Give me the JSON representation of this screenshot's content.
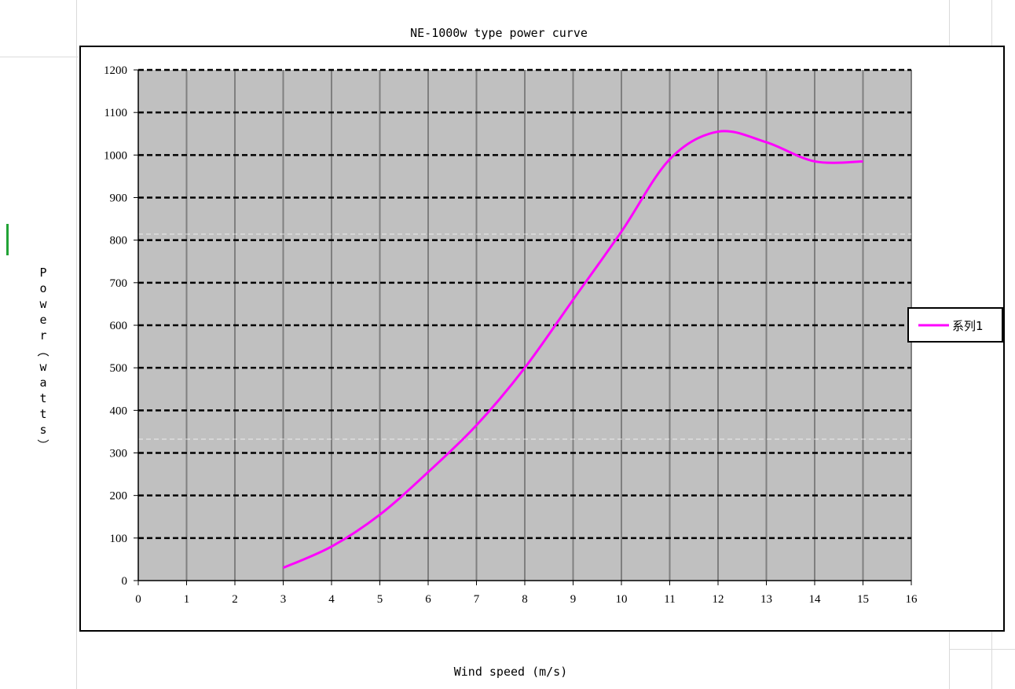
{
  "chart_data": {
    "type": "line",
    "title": "NE-1000w type power curve",
    "xlabel": "Wind speed (m/s)",
    "ylabel": "Power(watts)",
    "xlim": [
      0,
      16
    ],
    "ylim": [
      0,
      1200
    ],
    "x_ticks": [
      "0",
      "1",
      "2",
      "3",
      "4",
      "5",
      "6",
      "7",
      "8",
      "9",
      "10",
      "11",
      "12",
      "13",
      "14",
      "15",
      "16"
    ],
    "y_ticks": [
      "0",
      "100",
      "200",
      "300",
      "400",
      "500",
      "600",
      "700",
      "800",
      "900",
      "1000",
      "1100",
      "1200"
    ],
    "grid": true,
    "legend_position": "right",
    "plot_background": "#c0c0c0",
    "series": [
      {
        "name": "系列1",
        "color": "#ff00ff",
        "x": [
          3,
          4,
          5,
          6,
          7,
          8,
          9,
          10,
          11,
          12,
          13,
          14,
          15
        ],
        "y": [
          30,
          80,
          155,
          255,
          365,
          500,
          660,
          820,
          990,
          1055,
          1030,
          985,
          985
        ]
      }
    ]
  }
}
